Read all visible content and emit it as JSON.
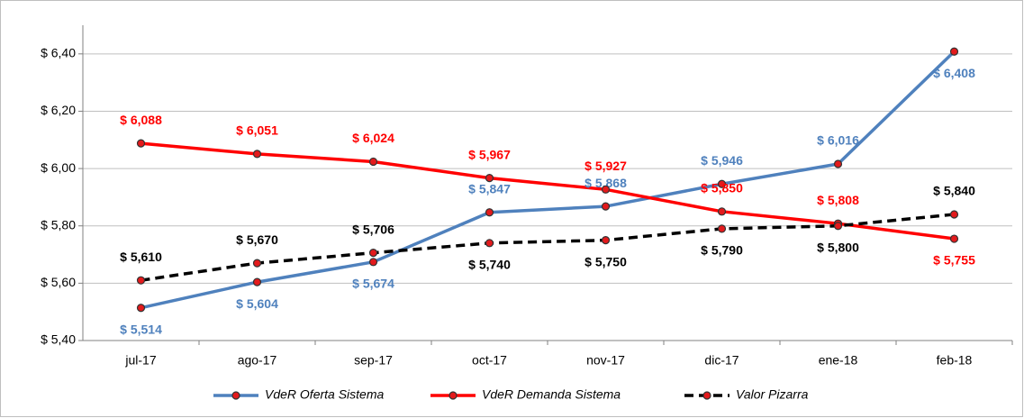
{
  "chart_data": {
    "type": "line",
    "categories": [
      "jul-17",
      "ago-17",
      "sep-17",
      "oct-17",
      "nov-17",
      "dic-17",
      "ene-18",
      "feb-18"
    ],
    "series": [
      {
        "name": "VdeR Oferta Sistema",
        "color": "#4f81bd",
        "dash": false,
        "values": [
          5.514,
          5.604,
          5.674,
          5.847,
          5.868,
          5.946,
          6.016,
          6.408
        ],
        "value_labels": [
          "$ 5,514",
          "$ 5,604",
          "$ 5,674",
          "$ 5,847",
          "$ 5,868",
          "$ 5,946",
          "$ 6,016",
          "$ 6,408"
        ]
      },
      {
        "name": "VdeR Demanda Sistema",
        "color": "#ff0000",
        "dash": false,
        "values": [
          6.088,
          6.051,
          6.024,
          5.967,
          5.927,
          5.85,
          5.808,
          5.755
        ],
        "value_labels": [
          "$ 6,088",
          "$ 6,051",
          "$ 6,024",
          "$ 5,967",
          "$ 5,927",
          "$ 5,850",
          "$ 5,808",
          "$ 5,755"
        ]
      },
      {
        "name": "Valor Pizarra",
        "color": "#000000",
        "dash": true,
        "values": [
          5.61,
          5.67,
          5.706,
          5.74,
          5.75,
          5.79,
          5.8,
          5.84
        ],
        "value_labels": [
          "$ 5,610",
          "$ 5,670",
          "$ 5,706",
          "$ 5,740",
          "$ 5,750",
          "$ 5,790",
          "$ 5,800",
          "$ 5,840"
        ]
      }
    ],
    "ylim": [
      5.4,
      6.5
    ],
    "yticks": [
      {
        "value": 5.4,
        "label": "$ 5,40"
      },
      {
        "value": 5.6,
        "label": "$ 5,60"
      },
      {
        "value": 5.8,
        "label": "$ 5,80"
      },
      {
        "value": 6.0,
        "label": "$ 6,00"
      },
      {
        "value": 6.2,
        "label": "$ 6,20"
      },
      {
        "value": 6.4,
        "label": "$ 6,40"
      }
    ],
    "grid": true,
    "legend": "bottom"
  }
}
